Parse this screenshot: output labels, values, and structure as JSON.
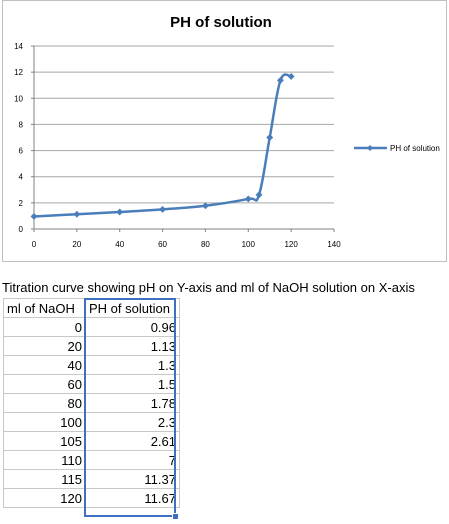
{
  "chart_data": {
    "type": "line",
    "title": "PH of solution",
    "xlabel": "",
    "ylabel": "",
    "xlim": [
      0,
      140
    ],
    "ylim": [
      0,
      14
    ],
    "x_ticks": [
      "0",
      "20",
      "40",
      "60",
      "80",
      "100",
      "120",
      "140"
    ],
    "y_ticks": [
      "0",
      "2",
      "4",
      "6",
      "8",
      "10",
      "12",
      "14"
    ],
    "grid": "horizontal major",
    "legend_position": "right",
    "series": [
      {
        "name": "PH of solution",
        "color": "#4a7ebb",
        "x": [
          0,
          20,
          40,
          60,
          80,
          100,
          105,
          110,
          115,
          120
        ],
        "y": [
          0.96,
          1.13,
          1.3,
          1.5,
          1.78,
          2.3,
          2.61,
          7,
          11.37,
          11.67
        ]
      }
    ]
  },
  "caption": "Titration curve showing pH on Y-axis and ml of NaOH solution on X-axis",
  "table": {
    "headers": [
      "ml of NaOH",
      "PH of solution"
    ],
    "rows": [
      [
        "0",
        "0.96"
      ],
      [
        "20",
        "1.13"
      ],
      [
        "40",
        "1.3"
      ],
      [
        "60",
        "1.5"
      ],
      [
        "80",
        "1.78"
      ],
      [
        "100",
        "2.3"
      ],
      [
        "105",
        "2.61"
      ],
      [
        "110",
        "7"
      ],
      [
        "115",
        "11.37"
      ],
      [
        "120",
        "11.67"
      ]
    ]
  }
}
